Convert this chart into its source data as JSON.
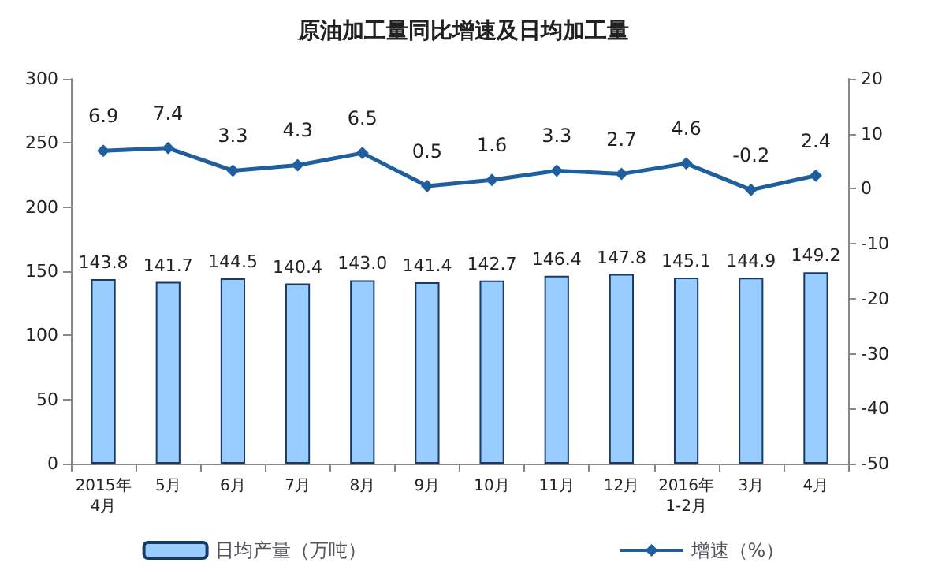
{
  "chart_data": {
    "type": "bar",
    "title": "原油加工量同比增速及日均加工量",
    "categories": [
      "2015年\n4月",
      "5月",
      "6月",
      "7月",
      "8月",
      "9月",
      "10月",
      "11月",
      "12月",
      "2016年\n1-2月",
      "3月",
      "4月"
    ],
    "series": [
      {
        "name": "日均产量（万吨）",
        "color": "#99ccff",
        "values": [
          143.8,
          141.7,
          144.5,
          140.4,
          143.0,
          141.4,
          142.7,
          146.4,
          147.8,
          145.1,
          144.9,
          149.2
        ],
        "value_labels": [
          "143.8",
          "141.7",
          "144.5",
          "140.4",
          "143.0",
          "141.4",
          "142.7",
          "146.4",
          "147.8",
          "145.1",
          "144.9",
          "149.2"
        ]
      },
      {
        "name": "增速（%）",
        "type": "line",
        "axis": "y2",
        "color": "#1f5f9f",
        "marker": "diamond",
        "values": [
          6.9,
          7.4,
          3.3,
          4.3,
          6.5,
          0.5,
          1.6,
          3.3,
          2.7,
          4.6,
          -0.2,
          2.4
        ],
        "value_labels": [
          "6.9",
          "7.4",
          "3.3",
          "4.3",
          "6.5",
          "0.5",
          "1.6",
          "3.3",
          "2.7",
          "4.6",
          "-0.2",
          "2.4"
        ]
      }
    ],
    "ylim": [
      0,
      300
    ],
    "yticks": [
      0,
      50,
      100,
      150,
      200,
      250,
      300
    ],
    "y2lim": [
      -50,
      20
    ],
    "y2ticks": [
      -50,
      -40,
      -30,
      -20,
      -10,
      0,
      10,
      20
    ],
    "grid": false,
    "legend": "bottom"
  }
}
